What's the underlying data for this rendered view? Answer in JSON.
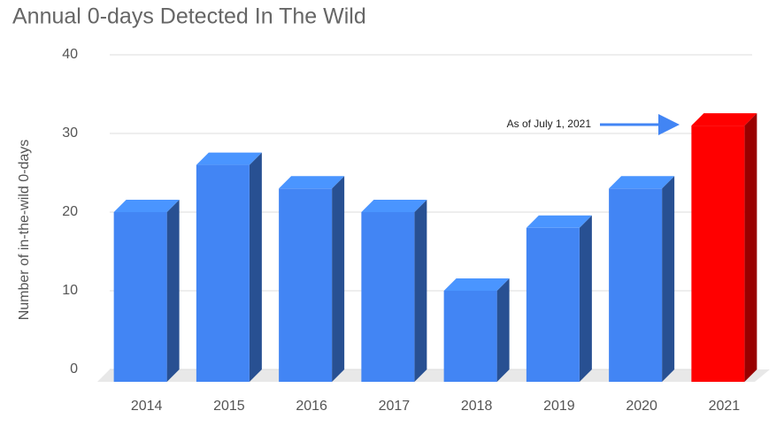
{
  "chart_data": {
    "type": "bar3d",
    "title": "Annual 0-days Detected In The Wild",
    "y_label": "Number of in-the-wild 0-days",
    "categories": [
      "2014",
      "2015",
      "2016",
      "2017",
      "2018",
      "2019",
      "2020",
      "2021"
    ],
    "values": [
      20,
      26,
      23,
      20,
      10,
      18,
      23,
      31
    ],
    "colors": [
      "#4285f4",
      "#4285f4",
      "#4285f4",
      "#4285f4",
      "#4285f4",
      "#4285f4",
      "#4285f4",
      "#ff0000"
    ],
    "ylim": [
      0,
      40
    ],
    "yticks": [
      0,
      10,
      20,
      30,
      40
    ],
    "grid": true,
    "annotation": "As of July 1, 2021"
  }
}
